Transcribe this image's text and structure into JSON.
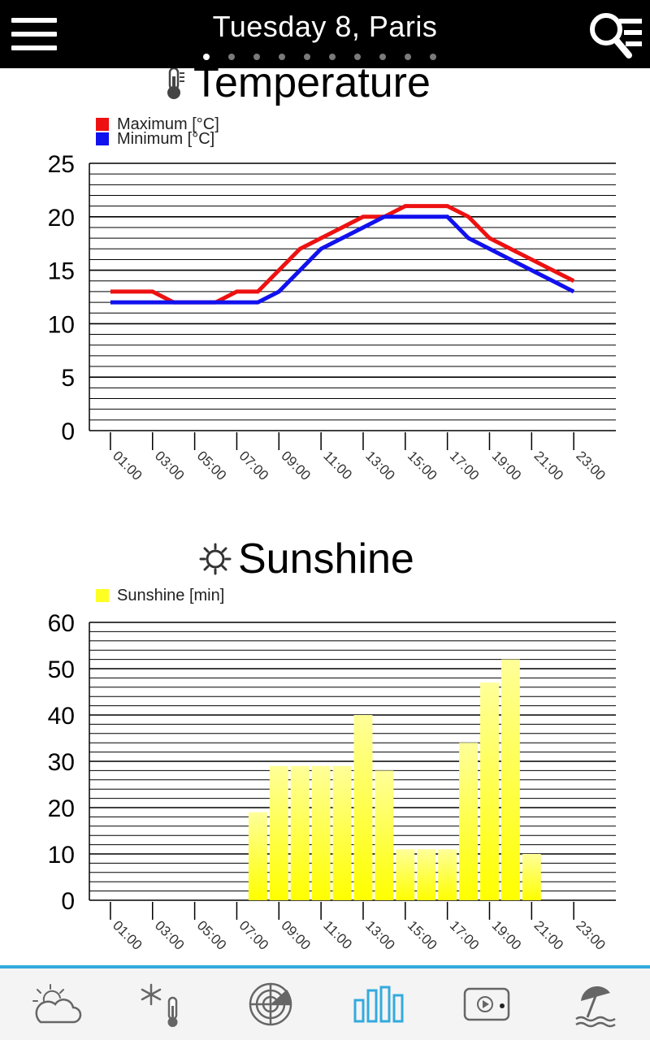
{
  "header": {
    "title": "Tuesday 8, Paris",
    "page_count": 10,
    "active_page": 1,
    "menu_icon": "hamburger-icon",
    "search_icon": "search-list-icon"
  },
  "temperature": {
    "title": "Temperature",
    "icon": "thermometer-icon"
  },
  "sunshine": {
    "title": "Sunshine",
    "icon": "sun-icon"
  },
  "chart_data": [
    {
      "type": "line",
      "legend": [
        "Maximum [°C]",
        "Minimum [°C]"
      ],
      "legend_placement": "top-left",
      "x": [
        "01:00",
        "02:00",
        "03:00",
        "04:00",
        "05:00",
        "06:00",
        "07:00",
        "08:00",
        "09:00",
        "10:00",
        "11:00",
        "12:00",
        "13:00",
        "14:00",
        "15:00",
        "16:00",
        "17:00",
        "18:00",
        "19:00",
        "20:00",
        "21:00",
        "22:00",
        "23:00",
        "24:00"
      ],
      "x_tick_labels": [
        "01:00",
        "03:00",
        "05:00",
        "07:00",
        "09:00",
        "11:00",
        "13:00",
        "15:00",
        "17:00",
        "19:00",
        "21:00",
        "23:00"
      ],
      "y_tick_labels": [
        "0",
        "5",
        "10",
        "15",
        "20",
        "25"
      ],
      "ylim": [
        0,
        25
      ],
      "grid": true,
      "series": [
        {
          "name": "Maximum [°C]",
          "color": "#ee1111",
          "values": [
            13,
            13,
            13,
            12,
            12,
            12,
            13,
            13,
            15,
            17,
            18,
            19,
            20,
            20,
            21,
            21,
            21,
            20,
            18,
            17,
            16,
            15,
            14,
            null
          ]
        },
        {
          "name": "Minimum [°C]",
          "color": "#1111ee",
          "values": [
            12,
            12,
            12,
            12,
            12,
            12,
            12,
            12,
            13,
            15,
            17,
            18,
            19,
            20,
            20,
            20,
            20,
            18,
            17,
            16,
            15,
            14,
            13,
            null
          ]
        }
      ]
    },
    {
      "type": "bar",
      "legend": [
        "Sunshine [min]"
      ],
      "legend_placement": "top-left",
      "x": [
        "01:00",
        "02:00",
        "03:00",
        "04:00",
        "05:00",
        "06:00",
        "07:00",
        "08:00",
        "09:00",
        "10:00",
        "11:00",
        "12:00",
        "13:00",
        "14:00",
        "15:00",
        "16:00",
        "17:00",
        "18:00",
        "19:00",
        "20:00",
        "21:00",
        "22:00",
        "23:00",
        "24:00"
      ],
      "x_tick_labels": [
        "01:00",
        "03:00",
        "05:00",
        "07:00",
        "09:00",
        "11:00",
        "13:00",
        "15:00",
        "17:00",
        "19:00",
        "21:00",
        "23:00"
      ],
      "y_tick_labels": [
        "0",
        "10",
        "20",
        "30",
        "40",
        "50",
        "60"
      ],
      "ylim": [
        0,
        60
      ],
      "grid": true,
      "series": [
        {
          "name": "Sunshine [min]",
          "color": "#ffff22",
          "values": [
            0,
            0,
            0,
            0,
            0,
            0,
            0,
            19,
            29,
            29,
            29,
            29,
            40,
            28,
            11,
            11,
            11,
            34,
            47,
            52,
            10,
            0,
            0,
            0
          ]
        }
      ]
    }
  ],
  "bottom_nav": [
    {
      "name": "forecast-tab",
      "icon": "partly-cloudy-icon",
      "active": false
    },
    {
      "name": "snow-temperature-tab",
      "icon": "snow-thermometer-icon",
      "active": false
    },
    {
      "name": "radar-tab",
      "icon": "radar-icon",
      "active": false
    },
    {
      "name": "charts-tab",
      "icon": "bar-chart-icon",
      "active": true
    },
    {
      "name": "video-tab",
      "icon": "video-icon",
      "active": false
    },
    {
      "name": "beach-tab",
      "icon": "beach-umbrella-icon",
      "active": false
    }
  ],
  "colors": {
    "accent": "#33aadd",
    "topbar": "#000000",
    "icon_gray": "#555555"
  }
}
